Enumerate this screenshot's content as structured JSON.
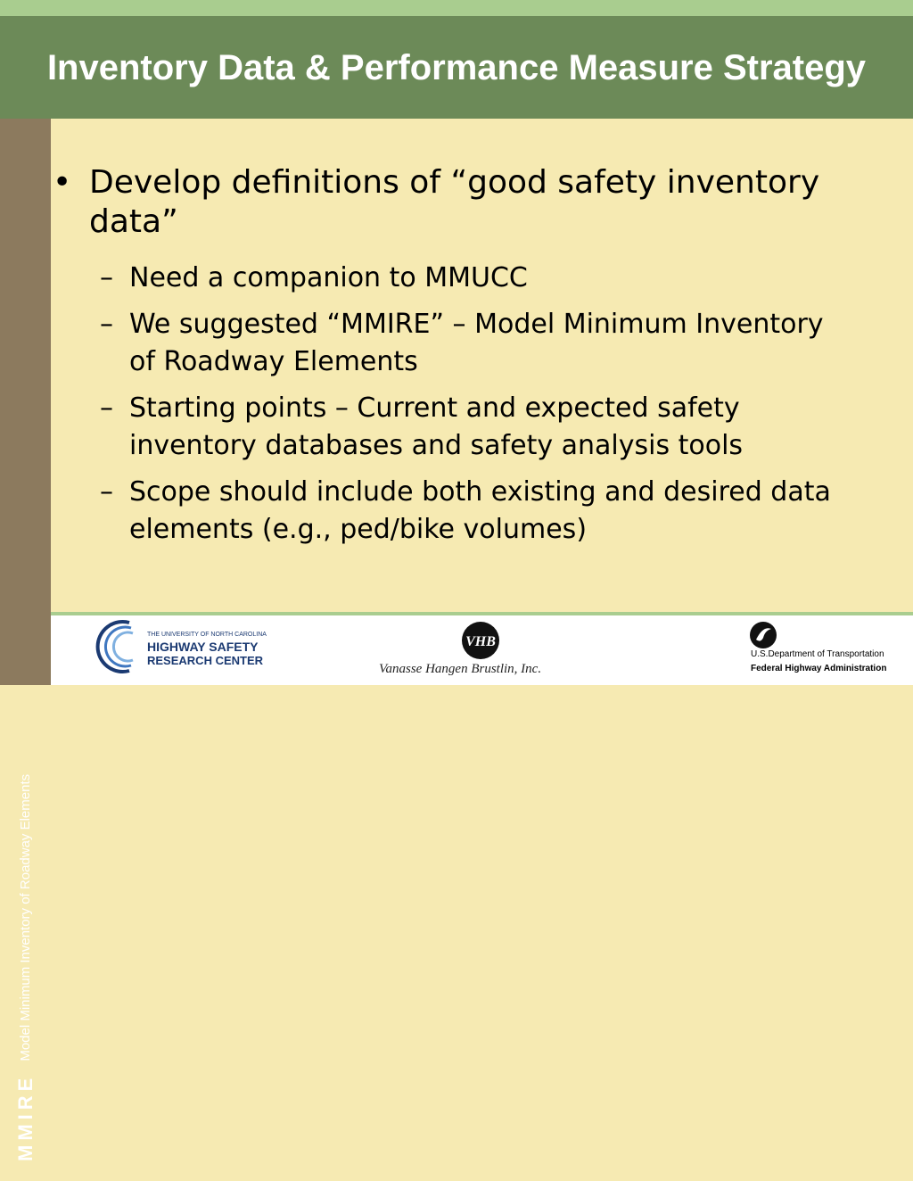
{
  "slide": {
    "title": "Inventory Data & Performance Measure Strategy",
    "bullet": {
      "marker": "•",
      "text": "Develop definitions of “good safety inventory data”"
    },
    "sub_marker": "–",
    "sub_bullets": [
      "Need a companion to MMUCC",
      "We suggested “MMIRE” – Model Minimum Inventory of Roadway Elements",
      "Starting points – Current and expected safety inventory databases and safety analysis tools",
      "Scope should include both existing and desired data elements (e.g., ped/bike volumes)"
    ]
  },
  "sidebar": {
    "brand": "MMIRE",
    "subtitle": "Model Minimum Inventory of Roadway Elements"
  },
  "footer": {
    "hsrc": {
      "small": "THE UNIVERSITY OF NORTH CAROLINA",
      "line1": "HIGHWAY SAFETY",
      "line2": "RESEARCH CENTER"
    },
    "vhb": {
      "logo_text": "VHB",
      "name": "Vanasse Hangen Brustlin, Inc."
    },
    "dot": {
      "line1": "U.S.Department of Transportation",
      "line2": "Federal Highway Administration"
    }
  },
  "colors": {
    "title_bar": "#6c8a58",
    "top_stripe": "#a9cd8f",
    "content_background": "#f6eab2",
    "sidebar": "#8c7a5e",
    "hsrc_blue": "#1b3a72"
  },
  "icons": [
    "hsrc-swoosh-icon",
    "vhb-circle-icon",
    "dot-emblem-icon"
  ]
}
